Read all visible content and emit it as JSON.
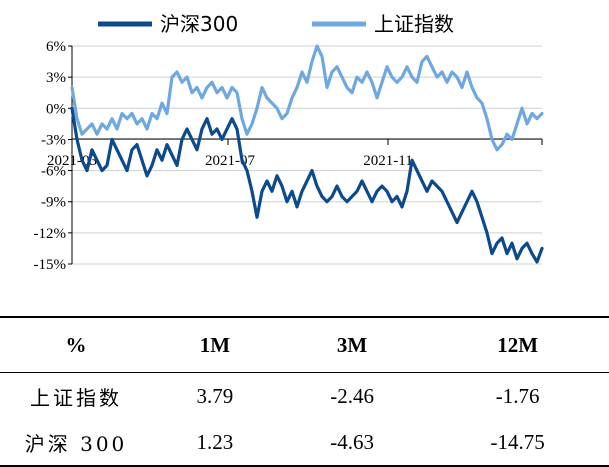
{
  "chart_data": {
    "type": "line",
    "x_tick_labels": [
      "2021-03",
      "2021-07",
      "2021-11"
    ],
    "y_tick_labels": [
      "6%",
      "3%",
      "0%",
      "-3%",
      "-6%",
      "-9%",
      "-12%",
      "-15%"
    ],
    "ylim": [
      -15,
      6
    ],
    "series": [
      {
        "name": "沪深300",
        "color": "#0b4a8c",
        "values": [
          0,
          -3,
          -5,
          -6,
          -4,
          -5,
          -6,
          -5.5,
          -3,
          -4,
          -5,
          -6,
          -4,
          -3.5,
          -5,
          -6.5,
          -5.5,
          -4,
          -5,
          -3.5,
          -4.5,
          -5.5,
          -3,
          -2,
          -3,
          -4,
          -2,
          -1,
          -2.5,
          -2,
          -3,
          -2,
          -1,
          -2,
          -5,
          -6,
          -8,
          -10.5,
          -8,
          -7,
          -8,
          -6.5,
          -7.5,
          -9,
          -8,
          -9.5,
          -8,
          -7,
          -6,
          -7.5,
          -8.5,
          -9,
          -8.5,
          -7.5,
          -8.5,
          -9,
          -8.5,
          -8,
          -7,
          -8,
          -9,
          -8,
          -7.5,
          -8,
          -9,
          -8.5,
          -9.5,
          -8,
          -5,
          -6,
          -7,
          -8,
          -7,
          -7.5,
          -8,
          -9,
          -10,
          -11,
          -10,
          -9,
          -8,
          -9,
          -10.5,
          -12,
          -14,
          -13,
          -12.5,
          -14,
          -13,
          -14.5,
          -13.5,
          -13,
          -14,
          -14.8,
          -13.5
        ]
      },
      {
        "name": "上证指数",
        "color": "#6fa8e0",
        "values": [
          2,
          -1,
          -2.5,
          -2,
          -1.5,
          -2.5,
          -1.5,
          -2,
          -1,
          -2,
          -0.5,
          -1,
          -0.5,
          -1.5,
          -1,
          -2,
          -0.5,
          -1,
          0.5,
          -0.5,
          3,
          3.5,
          2.5,
          3,
          1.5,
          2,
          1,
          2,
          2.5,
          1.5,
          2,
          1,
          2,
          1.5,
          -1,
          -2.5,
          -1.5,
          0,
          2,
          1,
          0.5,
          0,
          -1,
          -0.5,
          1,
          2,
          3.5,
          2.5,
          4.5,
          6,
          5,
          2,
          3.5,
          4,
          3,
          2,
          1.5,
          3,
          2.5,
          3.5,
          2.5,
          1,
          2.5,
          4,
          3,
          2.5,
          3,
          4,
          3,
          2.5,
          4.5,
          5,
          4,
          3,
          3.5,
          2.5,
          3.5,
          3,
          2,
          3.5,
          2,
          1,
          0.5,
          -1,
          -3,
          -4,
          -3.5,
          -2.5,
          -3,
          -1.5,
          0,
          -1.5,
          -0.5,
          -1,
          -0.5
        ]
      }
    ]
  },
  "table": {
    "headers": [
      "%",
      "1M",
      "3M",
      "12M"
    ],
    "rows": [
      {
        "label": "上证指数",
        "m1": "3.79",
        "m3": "-2.46",
        "m12": "-1.76"
      },
      {
        "label": "沪深 300",
        "m1": "1.23",
        "m3": "-4.63",
        "m12": "-14.75"
      }
    ]
  }
}
